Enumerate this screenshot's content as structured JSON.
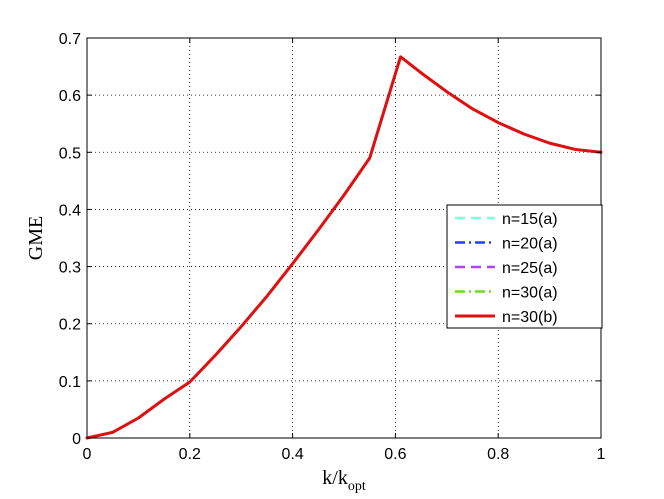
{
  "chart_data": {
    "type": "line",
    "xlabel_main": "k/k",
    "xlabel_sub": "opt",
    "ylabel": "GME",
    "xlim": [
      0,
      1
    ],
    "ylim": [
      0,
      0.7
    ],
    "xticks": [
      0,
      0.2,
      0.4,
      0.6,
      0.8,
      1
    ],
    "xtick_labels": [
      "0",
      "0.2",
      "0.4",
      "0.6",
      "0.8",
      "1"
    ],
    "yticks": [
      0,
      0.1,
      0.2,
      0.3,
      0.4,
      0.5,
      0.6,
      0.7
    ],
    "ytick_labels": [
      "0",
      "0.1",
      "0.2",
      "0.3",
      "0.4",
      "0.5",
      "0.6",
      "0.7"
    ],
    "grid": true,
    "legend_position": "right",
    "series": [
      {
        "name": "n=15(a)",
        "color": "#7fffd4",
        "style": "dashed",
        "x": [
          0,
          0.05,
          0.1,
          0.15,
          0.2,
          0.25,
          0.3,
          0.35,
          0.4,
          0.45,
          0.5,
          0.55,
          0.61,
          0.65,
          0.7,
          0.75,
          0.8,
          0.85,
          0.9,
          0.95,
          1.0
        ],
        "y": [
          0,
          0.01,
          0.035,
          0.068,
          0.098,
          0.145,
          0.195,
          0.248,
          0.305,
          0.364,
          0.425,
          0.49,
          0.667,
          0.639,
          0.606,
          0.576,
          0.552,
          0.532,
          0.516,
          0.505,
          0.5
        ]
      },
      {
        "name": "n=20(a)",
        "color": "#1f3fff",
        "style": "dashdot",
        "x": [
          0,
          0.05,
          0.1,
          0.15,
          0.2,
          0.25,
          0.3,
          0.35,
          0.4,
          0.45,
          0.5,
          0.55,
          0.61,
          0.65,
          0.7,
          0.75,
          0.8,
          0.85,
          0.9,
          0.95,
          1.0
        ],
        "y": [
          0,
          0.01,
          0.035,
          0.068,
          0.098,
          0.145,
          0.195,
          0.248,
          0.305,
          0.364,
          0.425,
          0.49,
          0.667,
          0.639,
          0.606,
          0.576,
          0.552,
          0.532,
          0.516,
          0.505,
          0.5
        ]
      },
      {
        "name": "n=25(a)",
        "color": "#b040ff",
        "style": "dashed",
        "x": [
          0,
          0.05,
          0.1,
          0.15,
          0.2,
          0.25,
          0.3,
          0.35,
          0.4,
          0.45,
          0.5,
          0.55,
          0.61,
          0.65,
          0.7,
          0.75,
          0.8,
          0.85,
          0.9,
          0.95,
          1.0
        ],
        "y": [
          0,
          0.01,
          0.035,
          0.068,
          0.098,
          0.145,
          0.195,
          0.248,
          0.305,
          0.364,
          0.425,
          0.49,
          0.667,
          0.639,
          0.606,
          0.576,
          0.552,
          0.532,
          0.516,
          0.505,
          0.5
        ]
      },
      {
        "name": "n=30(a)",
        "color": "#66dd22",
        "style": "dashdot",
        "x": [
          0,
          0.05,
          0.1,
          0.15,
          0.2,
          0.25,
          0.3,
          0.35,
          0.4,
          0.45,
          0.5,
          0.55,
          0.61,
          0.65,
          0.7,
          0.75,
          0.8,
          0.85,
          0.9,
          0.95,
          1.0
        ],
        "y": [
          0,
          0.01,
          0.035,
          0.068,
          0.098,
          0.145,
          0.195,
          0.248,
          0.305,
          0.364,
          0.425,
          0.49,
          0.667,
          0.639,
          0.606,
          0.576,
          0.552,
          0.532,
          0.516,
          0.505,
          0.5
        ]
      },
      {
        "name": "n=30(b)",
        "color": "#e01010",
        "style": "solid",
        "x": [
          0,
          0.05,
          0.1,
          0.15,
          0.2,
          0.25,
          0.3,
          0.35,
          0.4,
          0.45,
          0.5,
          0.55,
          0.61,
          0.65,
          0.7,
          0.75,
          0.8,
          0.85,
          0.9,
          0.95,
          1.0
        ],
        "y": [
          0,
          0.01,
          0.035,
          0.068,
          0.098,
          0.145,
          0.195,
          0.248,
          0.305,
          0.364,
          0.425,
          0.49,
          0.667,
          0.639,
          0.606,
          0.576,
          0.552,
          0.532,
          0.516,
          0.505,
          0.5
        ]
      }
    ]
  }
}
